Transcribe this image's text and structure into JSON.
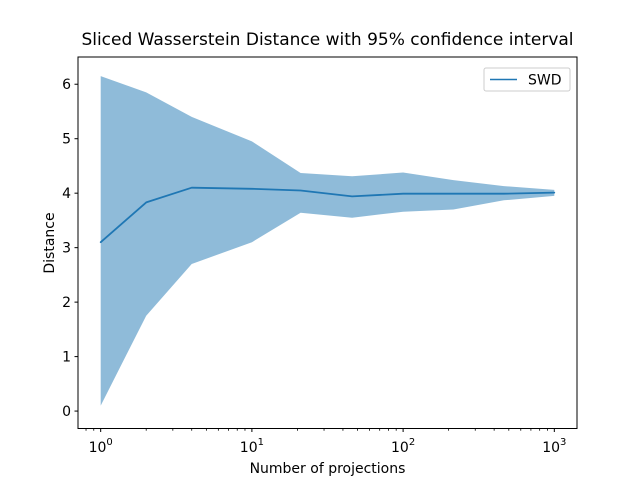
{
  "window": {
    "background": "#ffffff"
  },
  "chart_data": {
    "type": "line",
    "title": "Sliced Wasserstein Distance with 95% confidence interval",
    "xlabel": "Number of projections",
    "ylabel": "Distance",
    "xscale": "log",
    "grid": false,
    "x": [
      1,
      2,
      4,
      10,
      21,
      46,
      100,
      215,
      464,
      1000
    ],
    "series": [
      {
        "name": "SWD",
        "values": [
          3.1,
          3.83,
          4.1,
          4.08,
          4.05,
          3.94,
          3.99,
          3.99,
          3.99,
          4.01
        ]
      }
    ],
    "band": {
      "label": "95% confidence interval",
      "upper": [
        6.15,
        5.85,
        5.4,
        4.95,
        4.37,
        4.31,
        4.38,
        4.24,
        4.13,
        4.06
      ],
      "lower": [
        0.1,
        1.75,
        2.7,
        3.1,
        3.64,
        3.55,
        3.66,
        3.7,
        3.87,
        3.95
      ]
    },
    "xlim_log": [
      -0.15,
      3.15
    ],
    "ylim": [
      -0.32,
      6.5
    ],
    "yticks": [
      0,
      1,
      2,
      3,
      4,
      5,
      6
    ],
    "xtick_exponents": [
      0,
      1,
      2,
      3
    ],
    "xtick_base": "10",
    "legend": {
      "entries": [
        "SWD"
      ],
      "position": "upper right"
    },
    "colors": {
      "line": "#1f77b4",
      "band": "#1f77b4",
      "band_alpha": 0.5,
      "spine": "#000000",
      "tick": "#000000",
      "text": "#000000",
      "legend_edge": "#cccccc"
    }
  }
}
